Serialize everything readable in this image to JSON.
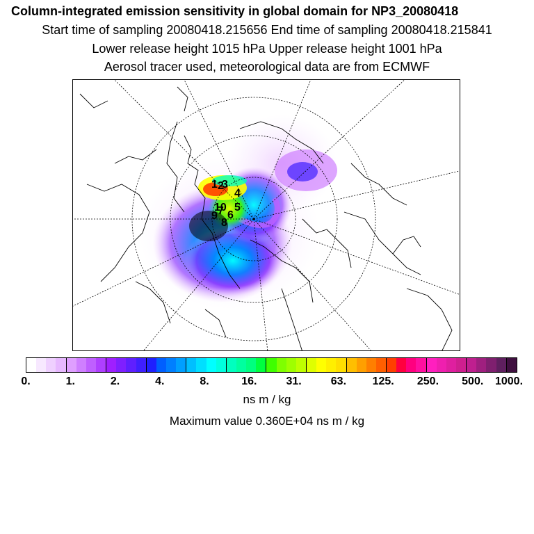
{
  "header": {
    "title": "Column-integrated emission sensitivity in global domain for NP3_20080418",
    "line1": "Start time of sampling 20080418.215656     End time of sampling 20080418.215841",
    "line2": "Lower release height 1015 hPa        Upper release height 1001 hPa",
    "line3": "Aerosol tracer used, meteorological data are from ECMWF"
  },
  "map": {
    "release_labels": [
      "1",
      "2",
      "3",
      "4",
      "5",
      "6",
      "7",
      "8",
      "9",
      "10"
    ]
  },
  "colorbar": {
    "colors": [
      "#ffffff",
      "#f7e8ff",
      "#efd0ff",
      "#e7b8ff",
      "#df9fff",
      "#cf7fff",
      "#bf5fff",
      "#af3fff",
      "#9f1fff",
      "#7f1fff",
      "#5f1fff",
      "#3f1fff",
      "#1f1fff",
      "#005fff",
      "#007fff",
      "#009fff",
      "#00bfff",
      "#00dfff",
      "#00ffff",
      "#00ffdf",
      "#00ffbf",
      "#00ff9f",
      "#00ff7f",
      "#00ff3f",
      "#3fff00",
      "#7fff00",
      "#9fff00",
      "#bfff00",
      "#dfff00",
      "#ffff00",
      "#ffef00",
      "#ffdf00",
      "#ffbf00",
      "#ff9f00",
      "#ff7f00",
      "#ff5f00",
      "#ff3f00",
      "#ff003f",
      "#ff007f",
      "#ff0f9f",
      "#ff1fbf",
      "#ef1faf",
      "#df1f9f",
      "#cf1f8f",
      "#bf1f8f",
      "#9f1f7f",
      "#7f1f6f",
      "#5f1f5f",
      "#3f0f3f"
    ],
    "tick_labels": [
      "0.",
      "1.",
      "2.",
      "4.",
      "8.",
      "16.",
      "31.",
      "63.",
      "125.",
      "250.",
      "500.",
      "1000."
    ],
    "unit": "ns m / kg",
    "max_label": "Maximum value  0.360E+04 ns m / kg"
  }
}
